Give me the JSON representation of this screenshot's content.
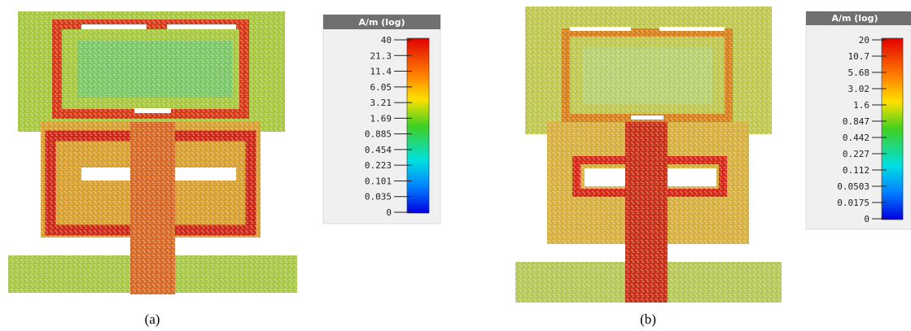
{
  "panels": [
    {
      "caption": "(a)",
      "colorbar": {
        "title": "A/m (log)",
        "ticks": [
          "40",
          "21.3",
          "11.4",
          "6.05",
          "3.21",
          "1.69",
          "0.885",
          "0.454",
          "0.223",
          "0.101",
          "0.035",
          "0"
        ]
      }
    },
    {
      "caption": "(b)",
      "colorbar": {
        "title": "A/m (log)",
        "ticks": [
          "20",
          "10.7",
          "5.68",
          "3.02",
          "1.6",
          "0.847",
          "0.442",
          "0.227",
          "0.112",
          "0.0503",
          "0.0175",
          "0"
        ]
      }
    }
  ]
}
